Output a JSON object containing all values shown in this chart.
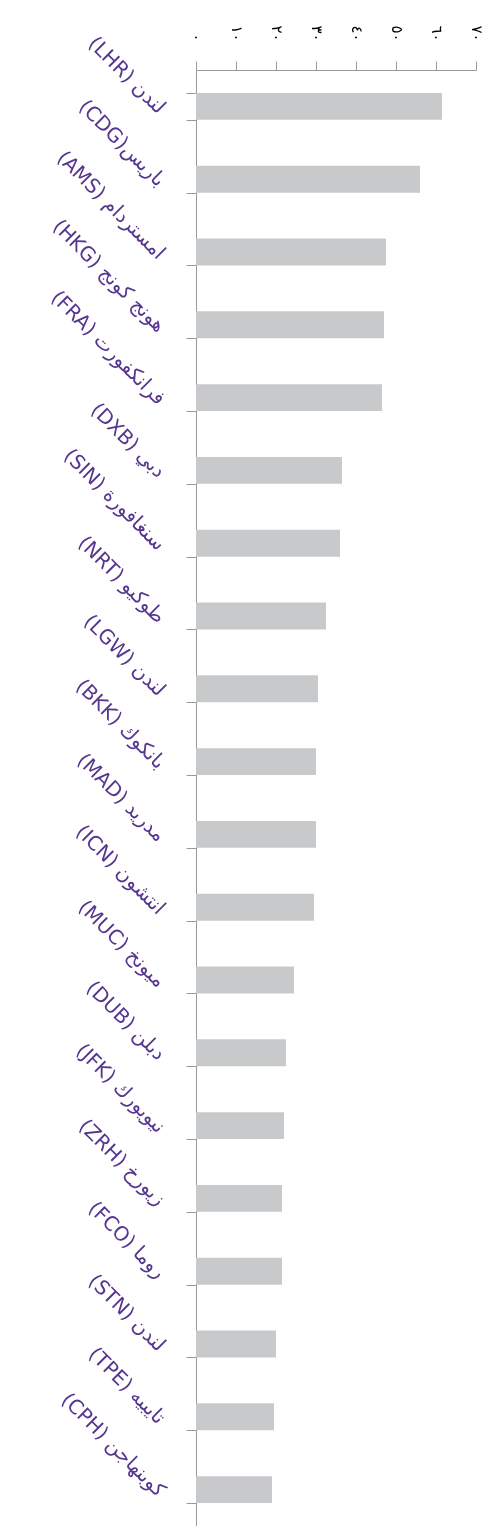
{
  "chart_data": {
    "type": "bar",
    "orientation": "horizontal",
    "categories": [
      "لندن (LHR)",
      "باريس(CDG)",
      "امستردام (AMS)",
      "هونج كونج (HKG)",
      "فرانكفورت (FRA)",
      "دبي (DXB)",
      "سنغافورة (SIN)",
      "طوكيو (NRT)",
      "لندن (LGW)",
      "بانكوك (BKK)",
      "مدريد (MAD)",
      "انتشون (ICN)",
      "ميونخ (MUC)",
      "دبلن (DUB)",
      "نيويورك (JFK)",
      "زيورخ (ZRH)",
      "روما (FCO)",
      "لندن (STN)",
      "تايبيه (TPE)",
      "كوبنهاجن (CPH)"
    ],
    "values": [
      61.5,
      56,
      47.5,
      47,
      46.5,
      36.5,
      36,
      32.5,
      30.5,
      30,
      30,
      29.5,
      24.5,
      22.5,
      22,
      21.5,
      21.5,
      20,
      19.5,
      19
    ],
    "color": "#c8c9cb",
    "xlim": [
      0,
      70
    ],
    "xticks": [
      {
        "value": 0,
        "label": "٠"
      },
      {
        "value": 10,
        "label": "١٠"
      },
      {
        "value": 20,
        "label": "٢٠"
      },
      {
        "value": 30,
        "label": "٣٠"
      },
      {
        "value": 40,
        "label": "٤٠"
      },
      {
        "value": 50,
        "label": "٥٠"
      },
      {
        "value": 60,
        "label": "٦٠"
      },
      {
        "value": 70,
        "label": "٧٠"
      }
    ]
  }
}
